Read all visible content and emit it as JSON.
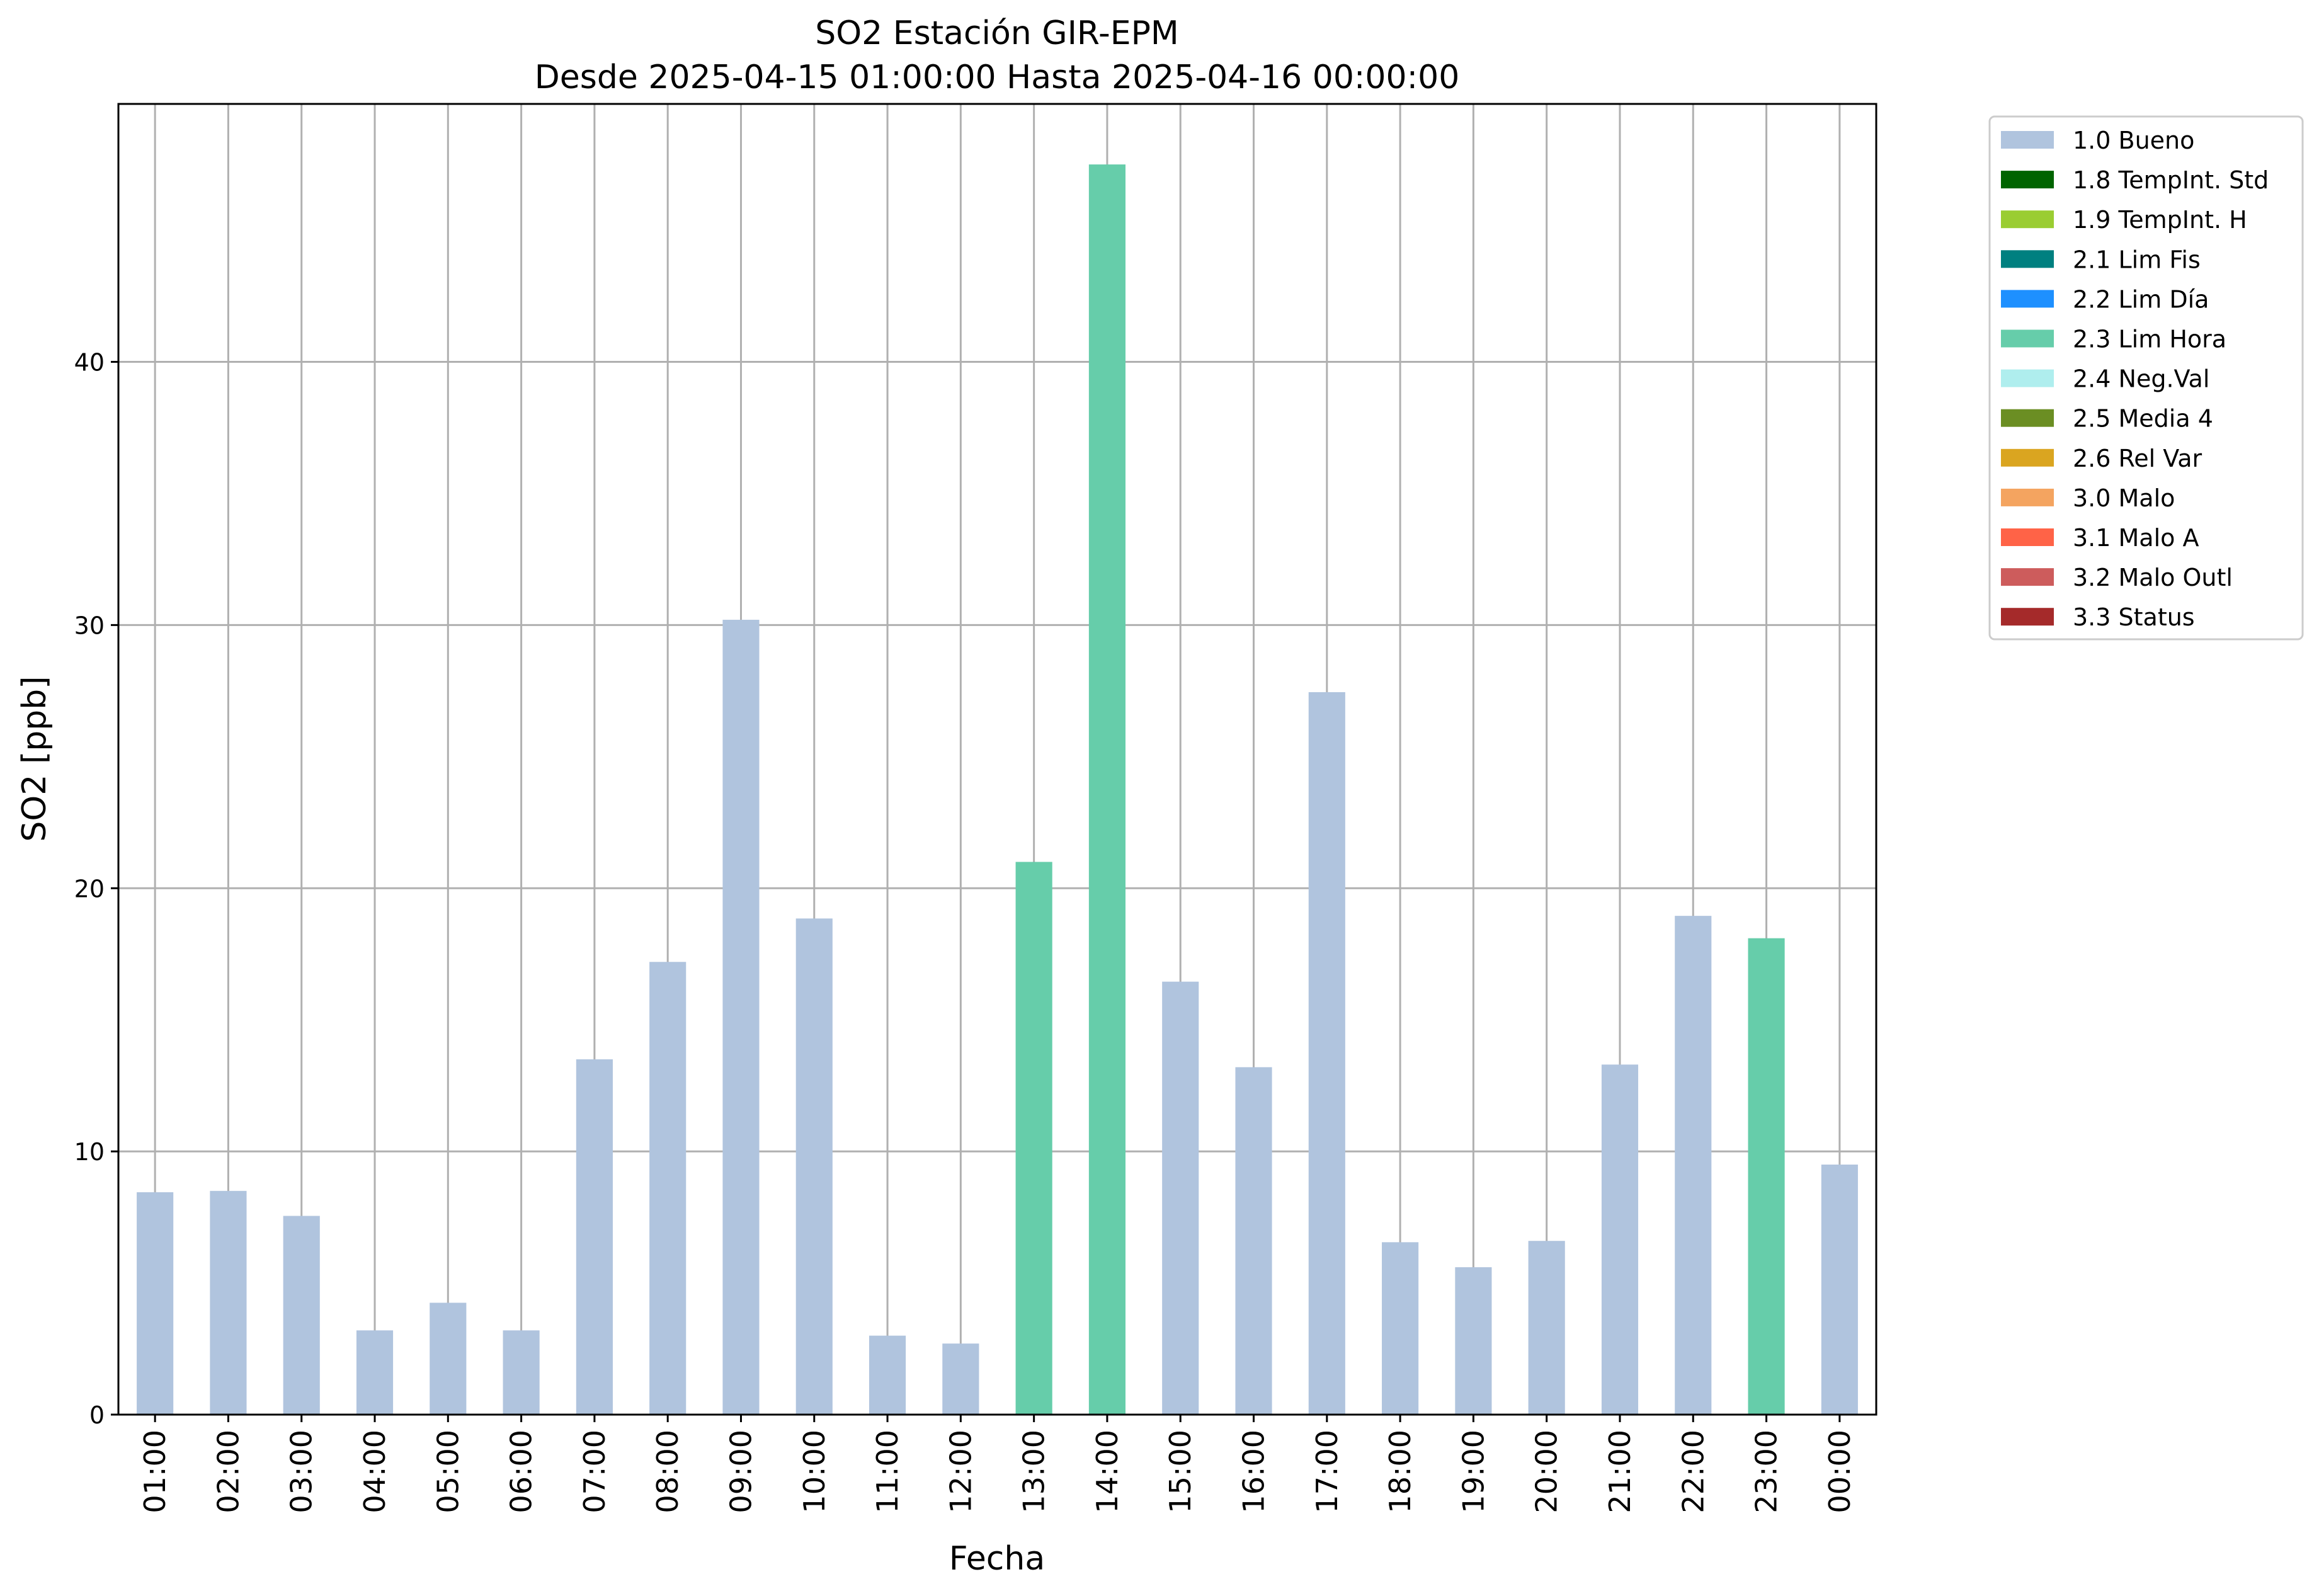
{
  "chart_data": {
    "type": "bar",
    "title": "SO2 Estación GIR-EPM",
    "subtitle": "Desde 2025-04-15 01:00:00 Hasta 2025-04-16 00:00:00",
    "xlabel": "Fecha",
    "ylabel": "SO2 [ppb]",
    "ylim": [
      0,
      49.8
    ],
    "yticks": [
      0,
      10,
      20,
      30,
      40
    ],
    "grid": true,
    "legend_position": "outside-top-right",
    "categories": [
      "01:00",
      "02:00",
      "03:00",
      "04:00",
      "05:00",
      "06:00",
      "07:00",
      "08:00",
      "09:00",
      "10:00",
      "11:00",
      "12:00",
      "13:00",
      "14:00",
      "15:00",
      "16:00",
      "17:00",
      "18:00",
      "19:00",
      "20:00",
      "21:00",
      "22:00",
      "23:00",
      "00:00"
    ],
    "values": [
      8.45,
      8.5,
      7.55,
      3.2,
      4.25,
      3.2,
      13.5,
      17.2,
      30.2,
      18.85,
      3.0,
      2.7,
      21.0,
      47.5,
      16.45,
      13.2,
      27.45,
      6.55,
      5.6,
      6.6,
      13.3,
      18.95,
      18.1,
      9.5
    ],
    "bar_flags": [
      "1.0 Bueno",
      "1.0 Bueno",
      "1.0 Bueno",
      "1.0 Bueno",
      "1.0 Bueno",
      "1.0 Bueno",
      "1.0 Bueno",
      "1.0 Bueno",
      "1.0 Bueno",
      "1.0 Bueno",
      "1.0 Bueno",
      "1.0 Bueno",
      "2.3 Lim Hora",
      "2.3 Lim Hora",
      "1.0 Bueno",
      "1.0 Bueno",
      "1.0 Bueno",
      "1.0 Bueno",
      "1.0 Bueno",
      "1.0 Bueno",
      "1.0 Bueno",
      "1.0 Bueno",
      "2.3 Lim Hora",
      "1.0 Bueno"
    ],
    "legend": [
      {
        "label": "1.0 Bueno",
        "color": "#b0c4de"
      },
      {
        "label": "1.8 TempInt. Std",
        "color": "#006400"
      },
      {
        "label": "1.9 TempInt. H",
        "color": "#9acd32"
      },
      {
        "label": "2.1 Lim Fis",
        "color": "#008080"
      },
      {
        "label": "2.2 Lim Día",
        "color": "#1e90ff"
      },
      {
        "label": "2.3 Lim Hora",
        "color": "#66cdaa"
      },
      {
        "label": "2.4 Neg.Val",
        "color": "#afeeee"
      },
      {
        "label": "2.5 Media 4",
        "color": "#6b8e23"
      },
      {
        "label": "2.6 Rel Var",
        "color": "#daa520"
      },
      {
        "label": "3.0 Malo",
        "color": "#f4a460"
      },
      {
        "label": "3.1 Malo A",
        "color": "#ff6347"
      },
      {
        "label": "3.2 Malo Outl",
        "color": "#cd5c5c"
      },
      {
        "label": "3.3 Status",
        "color": "#a52a2a"
      }
    ]
  }
}
